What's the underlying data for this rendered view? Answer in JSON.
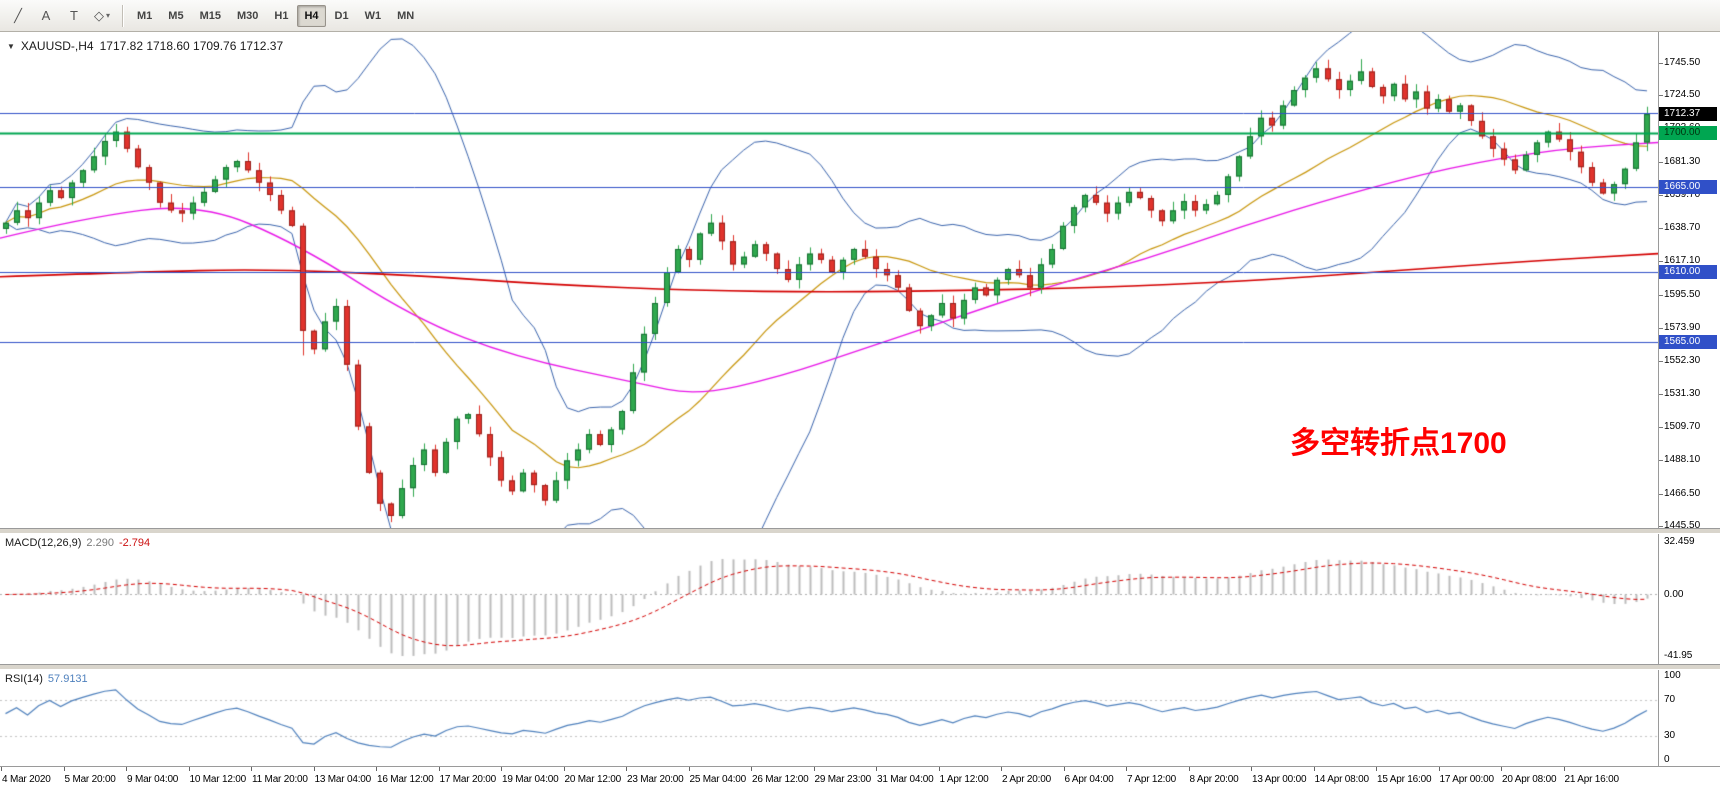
{
  "toolbar": {
    "tools": [
      {
        "name": "trendline-icon",
        "glyph": "╱"
      },
      {
        "name": "text-label-icon",
        "glyph": "A"
      },
      {
        "name": "text-icon",
        "glyph": "T"
      },
      {
        "name": "shapes-dropdown-icon",
        "glyph": "◇"
      }
    ],
    "dropdown_arrow": "▾",
    "timeframes": [
      "M1",
      "M5",
      "M15",
      "M30",
      "H1",
      "H4",
      "D1",
      "W1",
      "MN"
    ],
    "active_timeframe": "H4"
  },
  "main_chart": {
    "collapse_arrow": "▼",
    "symbol_tf_label": "XAUUSD-,H4",
    "ohlc_label": "1717.82 1718.60 1709.76 1712.37",
    "annotation_text": "多空转折点1700",
    "annotation_color": "#ff0000",
    "current_price_label": "1712.37"
  },
  "chart_data": {
    "type": "candlestick",
    "title": "XAUUSD-,H4",
    "symbol": "XAUUSD-",
    "timeframe": "H4",
    "ohlc": {
      "open": 1717.82,
      "high": 1718.6,
      "low": 1709.76,
      "close": 1712.37
    },
    "price_axis_ticks": [
      "1745.50",
      "1724.50",
      "1703.60",
      "1681.30",
      "1659.70",
      "1638.70",
      "1617.10",
      "1595.50",
      "1573.90",
      "1552.30",
      "1531.30",
      "1509.70",
      "1488.10",
      "1466.50",
      "1445.50"
    ],
    "price_min": 1444.2,
    "price_max": 1765.6,
    "first_open": 1638,
    "closes": [
      1642,
      1650,
      1645,
      1655,
      1663,
      1658,
      1668,
      1676,
      1685,
      1695,
      1701,
      1690,
      1678,
      1668,
      1655,
      1650,
      1648,
      1655,
      1662,
      1670,
      1678,
      1682,
      1676,
      1668,
      1660,
      1650,
      1640,
      1572,
      1560,
      1578,
      1588,
      1550,
      1510,
      1480,
      1460,
      1452,
      1470,
      1485,
      1495,
      1480,
      1500,
      1515,
      1518,
      1505,
      1490,
      1475,
      1468,
      1480,
      1472,
      1462,
      1475,
      1488,
      1495,
      1505,
      1498,
      1508,
      1520,
      1545,
      1570,
      1590,
      1610,
      1625,
      1618,
      1635,
      1642,
      1630,
      1615,
      1620,
      1628,
      1622,
      1612,
      1605,
      1615,
      1622,
      1618,
      1610,
      1618,
      1625,
      1620,
      1612,
      1608,
      1600,
      1585,
      1575,
      1582,
      1590,
      1580,
      1592,
      1600,
      1595,
      1605,
      1612,
      1608,
      1600,
      1615,
      1625,
      1640,
      1652,
      1660,
      1655,
      1648,
      1655,
      1662,
      1658,
      1650,
      1643,
      1650,
      1656,
      1650,
      1654,
      1660,
      1672,
      1685,
      1698,
      1710,
      1705,
      1718,
      1728,
      1736,
      1742,
      1735,
      1728,
      1734,
      1740,
      1730,
      1724,
      1732,
      1722,
      1727,
      1716,
      1722,
      1714,
      1718,
      1708,
      1698,
      1690,
      1683,
      1676,
      1686,
      1694,
      1701,
      1696,
      1688,
      1678,
      1668,
      1661,
      1667,
      1677,
      1694,
      1712.37
    ],
    "wick_overrides": {
      "10": {
        "high": 1706
      },
      "27": {
        "low": 1556
      },
      "35": {
        "low": 1448
      },
      "119": {
        "high": 1746
      },
      "123": {
        "high": 1748
      }
    },
    "hlines": [
      {
        "price": 1713,
        "color": "#3050c8",
        "label": "",
        "width": 1
      },
      {
        "price": 1700,
        "color": "#00a651",
        "label": "1700.00",
        "width": 2
      },
      {
        "price": 1665,
        "color": "#3050c8",
        "label": "1665.00",
        "width": 1
      },
      {
        "price": 1610,
        "color": "#3050c8",
        "label": "1610.00",
        "width": 1
      },
      {
        "price": 1565,
        "color": "#3050c8",
        "label": "1565.00",
        "width": 1
      }
    ],
    "colors": {
      "up": "#2fa84e",
      "up_border": "#156f31",
      "down": "#e0332c",
      "down_border": "#98211c",
      "bollinger": "#3a64ad",
      "ma_fast": "#c8960c",
      "ma_mid": "#e816e8",
      "ma_slow": "#d40000"
    },
    "ma_mid_anchors": [
      [
        0,
        1632
      ],
      [
        0.05,
        1645
      ],
      [
        0.12,
        1655
      ],
      [
        0.18,
        1628
      ],
      [
        0.25,
        1580
      ],
      [
        0.31,
        1555
      ],
      [
        0.385,
        1538
      ],
      [
        0.42,
        1530
      ],
      [
        0.47,
        1542
      ],
      [
        0.52,
        1560
      ],
      [
        0.57,
        1578
      ],
      [
        0.63,
        1600
      ],
      [
        0.69,
        1618
      ],
      [
        0.75,
        1640
      ],
      [
        0.81,
        1660
      ],
      [
        0.875,
        1678
      ],
      [
        0.94,
        1690
      ],
      [
        1,
        1694
      ]
    ],
    "ma_slow_anchors": [
      [
        0,
        1607
      ],
      [
        0.08,
        1610
      ],
      [
        0.16,
        1612
      ],
      [
        0.25,
        1608
      ],
      [
        0.33,
        1602
      ],
      [
        0.42,
        1598
      ],
      [
        0.5,
        1597
      ],
      [
        0.58,
        1598
      ],
      [
        0.66,
        1600
      ],
      [
        0.75,
        1604
      ],
      [
        0.83,
        1610
      ],
      [
        0.92,
        1617
      ],
      [
        1,
        1622
      ]
    ],
    "x_axis_labels": [
      "4 Mar 2020",
      "5 Mar 20:00",
      "9 Mar 04:00",
      "10 Mar 12:00",
      "11 Mar 20:00",
      "13 Mar 04:00",
      "16 Mar 12:00",
      "17 Mar 20:00",
      "19 Mar 04:00",
      "20 Mar 12:00",
      "23 Mar 20:00",
      "25 Mar 04:00",
      "26 Mar 12:00",
      "29 Mar 23:00",
      "31 Mar 04:00",
      "1 Apr 12:00",
      "2 Apr 20:00",
      "6 Apr 04:00",
      "7 Apr 12:00",
      "8 Apr 20:00",
      "13 Apr 00:00",
      "14 Apr 08:00",
      "15 Apr 16:00",
      "17 Apr 00:00",
      "20 Apr 08:00",
      "21 Apr 16:00"
    ],
    "macd": {
      "label": "MACD(12,26,9)",
      "value": "2.290",
      "signal_value": "-2.794",
      "axis_max": "32.459",
      "axis_zero": "0.00",
      "axis_min": "-41.95",
      "fast": 12,
      "slow": 26,
      "signal": 9,
      "bar_color": "#bdbdbd",
      "line_color": "#d40000"
    },
    "rsi": {
      "label": "RSI(14)",
      "value": "57.9131",
      "period": 14,
      "axis_labels": [
        "100",
        "70",
        "30",
        "0"
      ],
      "levels": [
        70,
        30
      ],
      "color": "#4f81bd"
    }
  }
}
